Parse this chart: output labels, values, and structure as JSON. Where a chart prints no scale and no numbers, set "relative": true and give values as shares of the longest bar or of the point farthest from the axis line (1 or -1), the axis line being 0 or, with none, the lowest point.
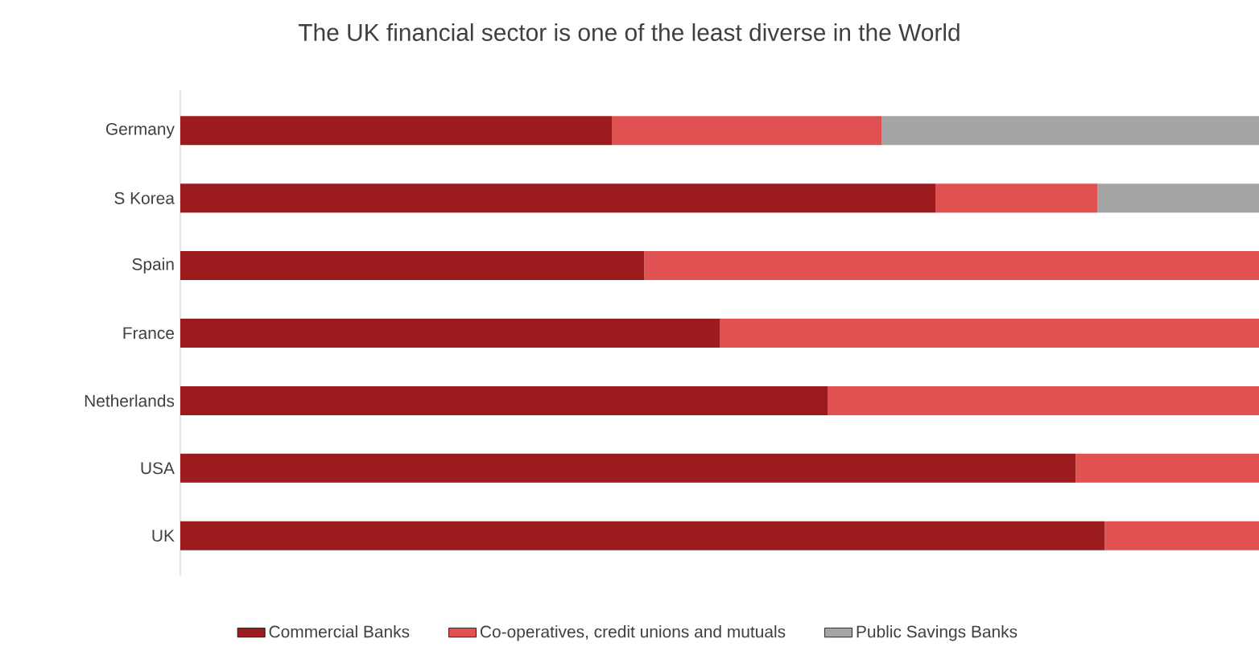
{
  "chart_data": {
    "type": "bar",
    "orientation": "horizontal",
    "stacked": true,
    "relative": true,
    "title": "The UK financial sector is one of the least diverse in the World",
    "categories": [
      "Germany",
      "S Korea",
      "Spain",
      "France",
      "Netherlands",
      "USA",
      "UK"
    ],
    "series": [
      {
        "name": "Commercial Banks",
        "color": "#9b1b1f",
        "values": [
          0.4,
          0.7,
          0.43,
          0.5,
          0.6,
          0.83,
          0.857
        ]
      },
      {
        "name": "Co-operatives, credit unions and mutuals",
        "color": "#e05252",
        "values": [
          0.25,
          0.15,
          0.57,
          0.5,
          0.4,
          0.17,
          0.143
        ]
      },
      {
        "name": "Public Savings Banks",
        "color": "#a5a5a5",
        "values": [
          0.35,
          0.15,
          null,
          null,
          null,
          null,
          null
        ]
      }
    ],
    "legend": "bottom"
  }
}
